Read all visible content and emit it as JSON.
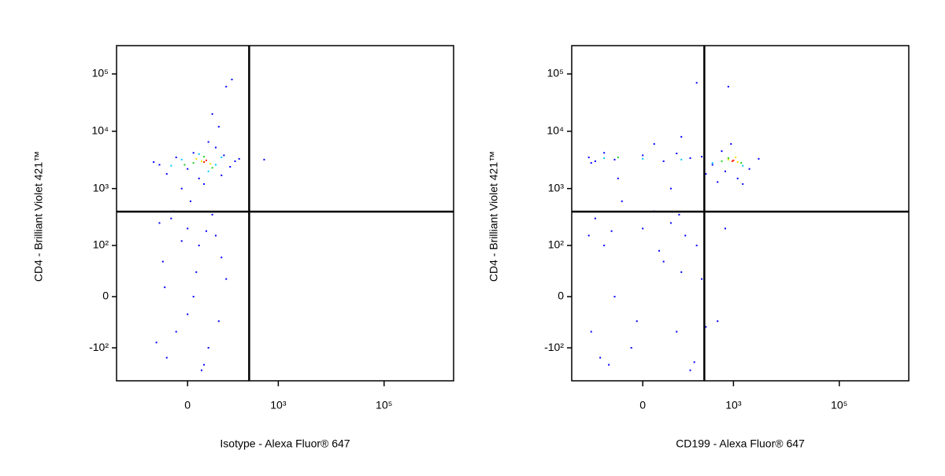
{
  "chart_data": [
    {
      "type": "scatter",
      "xscale": "biexponential",
      "yscale": "biexponential",
      "x_label": "Isotype - Alexa Fluor® 647",
      "y_label": "CD4 - Brilliant Violet 421™",
      "xlim": [
        -424,
        2060000
      ],
      "ylim": [
        -382,
        312000
      ],
      "xticks": [
        {
          "value": 0,
          "label": "0"
        },
        {
          "value": 1000,
          "label": "10³"
        },
        {
          "value": 100000,
          "label": "10⁵"
        }
      ],
      "yticks": [
        {
          "value": -100,
          "label": "-10²"
        },
        {
          "value": 0,
          "label": "0"
        },
        {
          "value": 100,
          "label": "10²"
        },
        {
          "value": 1000,
          "label": "10³"
        },
        {
          "value": 10000,
          "label": "10⁴"
        },
        {
          "value": 100000,
          "label": "10⁵"
        }
      ],
      "quadrant_x": 280,
      "quadrant_y": 395,
      "series": [
        {
          "color": "#0000ff",
          "x": [
            -60,
            -40,
            -20,
            0,
            10,
            20,
            -80,
            90,
            120,
            150,
            60,
            30,
            -10,
            40,
            70,
            50,
            100,
            130,
            180,
            80,
            -30,
            0,
            20,
            -50,
            10,
            -20,
            40,
            -40,
            30,
            60,
            -60,
            80,
            0,
            15,
            -10,
            50,
            -70,
            100,
            25,
            -25,
            5,
            70,
            -45,
            35,
            540
          ],
          "y": [
            2600,
            1800,
            3500,
            2200,
            4200,
            1500,
            2900,
            3800,
            2400,
            3000,
            5200,
            1200,
            1000,
            6500,
            12000,
            20000,
            60000,
            80000,
            3300,
            1700,
            300,
            200,
            100,
            50,
            0,
            -50,
            -100,
            -150,
            -200,
            150,
            250,
            60,
            -20,
            30,
            120,
            350,
            -80,
            20,
            -250,
            400,
            600,
            -30,
            10,
            180,
            3200
          ]
        },
        {
          "color": "#00c8ff",
          "x": [
            -30,
            40,
            80,
            -10,
            60,
            20
          ],
          "y": [
            2500,
            2000,
            3500,
            3200,
            2600,
            4000
          ]
        },
        {
          "color": "#20d020",
          "x": [
            10,
            50,
            30,
            -5
          ],
          "y": [
            2800,
            2300,
            3600,
            2600
          ]
        },
        {
          "color": "#f0e000",
          "x": [
            25,
            45,
            15
          ],
          "y": [
            3000,
            2700,
            3300
          ]
        },
        {
          "color": "#ff2000",
          "x": [
            35,
            30
          ],
          "y": [
            3100,
            2900
          ]
        }
      ]
    },
    {
      "type": "scatter",
      "xscale": "biexponential",
      "yscale": "biexponential",
      "x_label": "CD199 - Alexa Fluor® 647",
      "y_label": "CD4 - Brilliant Violet 421™",
      "xlim": [
        -424,
        2060000
      ],
      "ylim": [
        -382,
        312000
      ],
      "xticks": [
        {
          "value": 0,
          "label": "0"
        },
        {
          "value": 1000,
          "label": "10³"
        },
        {
          "value": 100000,
          "label": "10⁵"
        }
      ],
      "yticks": [
        {
          "value": -100,
          "label": "-10²"
        },
        {
          "value": 0,
          "label": "0"
        },
        {
          "value": 100,
          "label": "10²"
        },
        {
          "value": 1000,
          "label": "10³"
        },
        {
          "value": 10000,
          "label": "10⁴"
        },
        {
          "value": 100000,
          "label": "10⁵"
        }
      ],
      "quadrant_x": 280,
      "quadrant_y": 395,
      "series": [
        {
          "color": "#0000ff",
          "x": [
            -200,
            -150,
            -100,
            -60,
            0,
            40,
            80,
            150,
            250,
            400,
            700,
            1200,
            2000,
            3000,
            600,
            1500,
            -180,
            20,
            100,
            300,
            500,
            800,
            200,
            -50,
            60,
            900,
            -150,
            -100,
            -60,
            -20,
            0,
            40,
            80,
            120,
            -80,
            -120,
            20,
            60,
            100,
            -40,
            -180,
            150,
            200,
            -10,
            30,
            -70,
            250,
            180,
            -200,
            90,
            300,
            500,
            700
          ],
          "y": [
            3500,
            3000,
            4200,
            3200,
            3800,
            3000,
            4100,
            3400,
            3600,
            2600,
            2000,
            1500,
            2200,
            3300,
            4500,
            1200,
            2800,
            6000,
            8000,
            1800,
            1300,
            60000,
            70000,
            1500,
            1000,
            6000,
            300,
            100,
            0,
            -100,
            200,
            50,
            -50,
            150,
            -200,
            -150,
            400,
            250,
            30,
            600,
            -50,
            -250,
            100,
            -30,
            80,
            180,
            20,
            -180,
            150,
            350,
            -40,
            -30,
            200
          ]
        },
        {
          "color": "#00c8ff",
          "x": [
            -100,
            0,
            100,
            400,
            1500
          ],
          "y": [
            3400,
            3300,
            3200,
            2800,
            2500
          ]
        },
        {
          "color": "#20d020",
          "x": [
            600,
            800,
            1400,
            -50
          ],
          "y": [
            3000,
            3400,
            2800,
            3500
          ]
        },
        {
          "color": "#f0e000",
          "x": [
            800,
            1200,
            1100
          ],
          "y": [
            3200,
            2900,
            3500
          ]
        },
        {
          "color": "#ff2000",
          "x": [
            950,
            1000
          ],
          "y": [
            3000,
            3100
          ]
        }
      ]
    }
  ]
}
